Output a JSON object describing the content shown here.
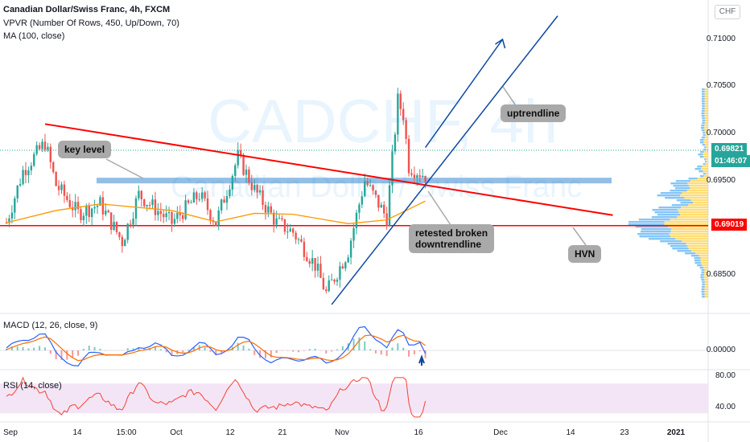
{
  "header": {
    "title": "Canadian Dollar/Swiss Franc, 4h, FXCM",
    "vpvr": "VPVR (Number Of Rows, 450, Up/Down, 70)",
    "ma": "MA (100, close)"
  },
  "watermark": {
    "main": "CADCHF, 4h",
    "sub": "Canadian Dollar / Swiss Franc"
  },
  "currency": "CHF",
  "badges": {
    "last_price": "0.69821",
    "countdown": "01:46:07",
    "hvn_price": "0.69019"
  },
  "annotations": {
    "key_level": "key level",
    "uptrendline": "uptrendline",
    "retest": "retested broken\ndowntrendline",
    "hvn": "HVN"
  },
  "indicators": {
    "macd": "MACD (12, 26, close, 9)",
    "rsi": "RSI (14, close)"
  },
  "colors": {
    "up": "#26a69a",
    "down": "#ef5350",
    "ma": "#ff9800",
    "trend_red": "#ff0000",
    "trend_blue": "#0d47a1",
    "key_zone": "#6fa8dc",
    "rsi_band": "#f3e5f5",
    "rsi_line": "#f44336",
    "macd": "#2962ff",
    "signal": "#ff6d00",
    "vpvr_up": "#2196f3",
    "vpvr_down": "#ffc107"
  },
  "chart_data": {
    "type": "candlestick",
    "price_axis": {
      "ticks": [
        "0.71000",
        "0.70500",
        "0.70000",
        "0.69500",
        "0.68500"
      ],
      "ylim": [
        0.6815,
        0.7125
      ]
    },
    "x_ticks": [
      "Sep",
      "14",
      "15:00",
      "Oct",
      "12",
      "21",
      "Nov",
      "16",
      "Dec",
      "14",
      "23",
      "2021"
    ],
    "price_series": [
      [
        "Sep 1",
        0.6905
      ],
      [
        "Sep 4",
        0.696
      ],
      [
        "Sep 8",
        0.699
      ],
      [
        "Sep 10",
        0.6945
      ],
      [
        "Sep 14",
        0.6915
      ],
      [
        "Sep 18",
        0.6925
      ],
      [
        "Sep 22",
        0.6885
      ],
      [
        "Sep 25",
        0.6935
      ],
      [
        "Oct 1",
        0.6905
      ],
      [
        "Oct 6",
        0.6935
      ],
      [
        "Oct 9",
        0.6905
      ],
      [
        "Oct 13",
        0.6975
      ],
      [
        "Oct 16",
        0.694
      ],
      [
        "Oct 20",
        0.6905
      ],
      [
        "Oct 23",
        0.6895
      ],
      [
        "Oct 27",
        0.686
      ],
      [
        "Oct 29",
        0.683
      ],
      [
        "Nov 2",
        0.6875
      ],
      [
        "Nov 5",
        0.695
      ],
      [
        "Nov 9",
        0.691
      ],
      [
        "Nov 11",
        0.7035
      ],
      [
        "Nov 12",
        0.702
      ],
      [
        "Nov 13",
        0.6965
      ],
      [
        "Nov 16",
        0.6955
      ]
    ],
    "moving_average_100": [
      [
        "Sep 1",
        0.6905
      ],
      [
        "Sep 10",
        0.6918
      ],
      [
        "Sep 18",
        0.6925
      ],
      [
        "Oct 1",
        0.6918
      ],
      [
        "Oct 9",
        0.6906
      ],
      [
        "Oct 16",
        0.6915
      ],
      [
        "Oct 23",
        0.6914
      ],
      [
        "Nov 2",
        0.6904
      ],
      [
        "Nov 9",
        0.6908
      ],
      [
        "Nov 16",
        0.6928
      ]
    ],
    "levels": {
      "hvn": 0.69019,
      "key_zone": [
        0.6946,
        0.6952
      ],
      "last_price": 0.69821
    },
    "drawings": {
      "downtrendline": [
        [
          "Sep 8",
          0.701
        ],
        [
          "Dec 20",
          0.6913
        ]
      ],
      "uptrendline": [
        [
          "Oct 30",
          0.6818
        ],
        [
          "Dec 10",
          0.7125
        ]
      ],
      "projection_arrow": [
        [
          "Nov 16",
          0.6985
        ],
        [
          "Nov 30",
          0.71
        ]
      ]
    },
    "macd": {
      "zero_label": "0.00000"
    },
    "rsi": {
      "ticks": [
        "80.00",
        "40.00"
      ],
      "band": [
        30,
        70
      ]
    }
  }
}
